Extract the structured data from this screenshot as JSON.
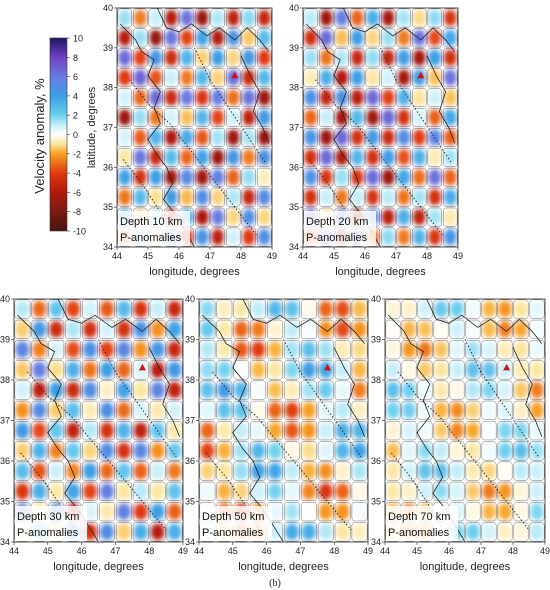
{
  "caption": "(b)",
  "colorbar": {
    "title": "Velocity anomaly, %",
    "ticks": [
      10,
      8,
      6,
      4,
      2,
      0,
      -2,
      -4,
      -6,
      -8,
      -10
    ],
    "range": [
      -10,
      10
    ],
    "stops": [
      {
        "v": -10,
        "c": "#4a1410"
      },
      {
        "v": -8,
        "c": "#7a1a10"
      },
      {
        "v": -6,
        "c": "#b0180c"
      },
      {
        "v": -4,
        "c": "#e03a10"
      },
      {
        "v": -2,
        "c": "#f7a020"
      },
      {
        "v": -1,
        "c": "#fbe49a"
      },
      {
        "v": 0,
        "c": "#ffffff"
      },
      {
        "v": 1,
        "c": "#c4eef8"
      },
      {
        "v": 2,
        "c": "#6fd0ee"
      },
      {
        "v": 4,
        "c": "#3a9ee4"
      },
      {
        "v": 6,
        "c": "#6a7ae0"
      },
      {
        "v": 8,
        "c": "#7040c0"
      },
      {
        "v": 10,
        "c": "#1a1a60"
      }
    ]
  },
  "axes": {
    "xlabel": "longitude, degrees",
    "ylabel": "latitude, degrees",
    "xlim": [
      44,
      49
    ],
    "ylim": [
      34,
      40
    ],
    "xticks": [
      44,
      45,
      46,
      47,
      48,
      49
    ],
    "yticks": [
      34,
      35,
      36,
      37,
      38,
      39,
      40
    ]
  },
  "station_marker": {
    "lon": 47.8,
    "lat": 38.3,
    "color": "#d01010"
  },
  "chart_data": [
    {
      "type": "heatmap",
      "depth_label": "Depth 10 km",
      "phase_label": "P-anomalies",
      "checker_size_deg": 0.5,
      "amplitude_pct": 6,
      "marker_lon": 47.8,
      "marker_lat": 38.3
    },
    {
      "type": "heatmap",
      "depth_label": "Depth 20 km",
      "phase_label": "P-anomalies",
      "checker_size_deg": 0.5,
      "amplitude_pct": 6,
      "marker_lon": 47.8,
      "marker_lat": 38.3
    },
    {
      "type": "heatmap",
      "depth_label": "Depth 30 km",
      "phase_label": "P-anomalies",
      "checker_size_deg": 0.5,
      "amplitude_pct": 5,
      "marker_lon": 47.8,
      "marker_lat": 38.3
    },
    {
      "type": "heatmap",
      "depth_label": "Depth 50 km",
      "phase_label": "P-anomalies",
      "checker_size_deg": 0.5,
      "amplitude_pct": 3,
      "marker_lon": 47.8,
      "marker_lat": 38.3
    },
    {
      "type": "heatmap",
      "depth_label": "Depth 70 km",
      "phase_label": "P-anomalies",
      "checker_size_deg": 0.5,
      "amplitude_pct": 2,
      "marker_lon": 47.8,
      "marker_lat": 38.3
    }
  ]
}
